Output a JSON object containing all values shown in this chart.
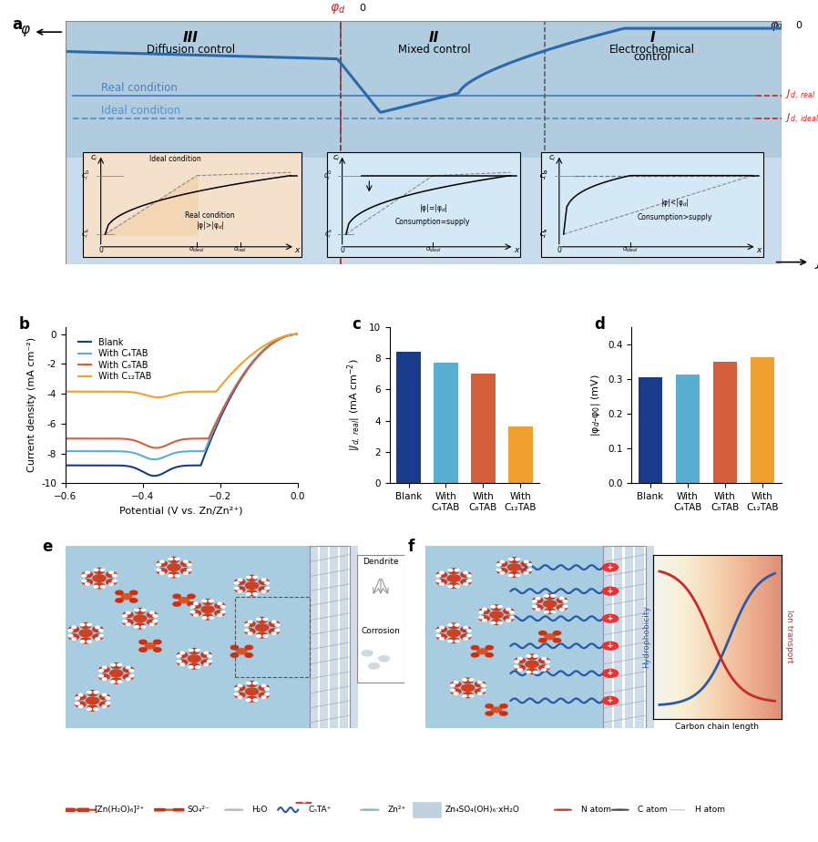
{
  "panel_b": {
    "colors": {
      "blank": "#1a3b8a",
      "c4tab": "#5aaed0",
      "c8tab": "#d45f3c",
      "c12tab": "#f0a030"
    },
    "labels": {
      "blank": "Blank",
      "c4tab": "With C₄TAB",
      "c8tab": "With C₈TAB",
      "c12tab": "With C₁₂TAB"
    },
    "xlim": [
      -0.6,
      0.0
    ],
    "ylim": [
      -10,
      0.5
    ],
    "xlabel": "Potential (V vs. Zn/Zn²⁺)",
    "ylabel": "Current density (mA cm⁻²)"
  },
  "panel_c": {
    "categories": [
      "Blank",
      "With C₄TAB",
      "With C₈TAB",
      "With C₁₂TAB"
    ],
    "values": [
      8.4,
      7.7,
      7.0,
      3.6
    ],
    "colors": [
      "#1a3b8a",
      "#5aaed0",
      "#d45f3c",
      "#f0a030"
    ],
    "ylim": [
      0,
      10
    ],
    "yticks": [
      0,
      2,
      4,
      6,
      8,
      10
    ]
  },
  "panel_d": {
    "categories": [
      "Blank",
      "With C₄TAB",
      "With C₈TAB",
      "With C₁₂TAB"
    ],
    "values": [
      0.305,
      0.313,
      0.348,
      0.362
    ],
    "colors": [
      "#1a3b8a",
      "#5aaed0",
      "#d45f3c",
      "#f0a030"
    ],
    "ylim": [
      0,
      0.45
    ],
    "yticks": [
      0.0,
      0.1,
      0.2,
      0.3,
      0.4
    ]
  },
  "panel_a_bg": "#b8cfe0",
  "panel_a_bg2": "#ccdaea",
  "inset1_bg": "#f5e0cc",
  "inset23_bg": "#d5e8f5",
  "main_curve_color": "#2a6aaa",
  "real_line_color": "#3a80c0",
  "ideal_line_color": "#5090c8",
  "phi_d_color": "#cc2020",
  "jd_color": "#cc2020"
}
